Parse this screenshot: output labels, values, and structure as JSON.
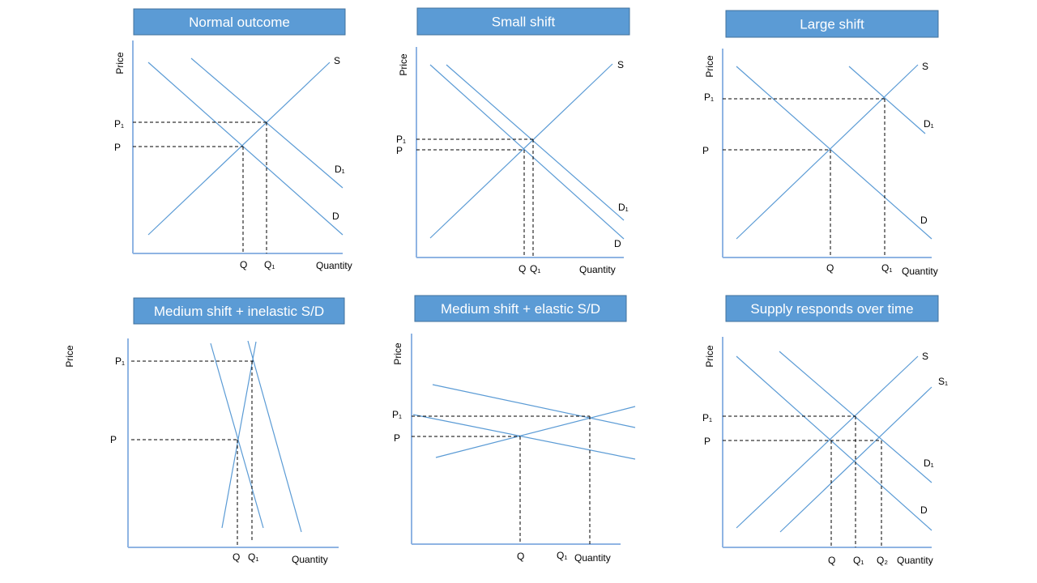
{
  "colors": {
    "title_fill": "#5b9bd5",
    "title_border": "#41719c",
    "curve": "#5b9bd5",
    "axis": "#8fb4e3",
    "guide": "#000000"
  },
  "panels": [
    {
      "title": "Normal outcome",
      "ylabel": "Price",
      "xlabel": "Quantity",
      "labels": [
        "P₁",
        "P",
        "Q",
        "Q₁",
        "S",
        "D₁",
        "D"
      ]
    },
    {
      "title": "Small shift",
      "ylabel": "Price",
      "xlabel": "Quantity",
      "labels": [
        "P₁",
        "P",
        "Q",
        "Q₁",
        "S",
        "D₁",
        "D"
      ]
    },
    {
      "title": "Large shift",
      "ylabel": "Price",
      "xlabel": "Quantity",
      "labels": [
        "P₁",
        "P",
        "Q",
        "Q₁",
        "S",
        "D₁",
        "D"
      ]
    },
    {
      "title": "Medium shift + inelastic S/D",
      "ylabel": "Price",
      "xlabel": "Quantity",
      "labels": [
        "P₁",
        "P",
        "Q",
        "Q₁"
      ]
    },
    {
      "title": "Medium shift + elastic S/D",
      "ylabel": "Price",
      "xlabel": "Quantity",
      "labels": [
        "P₁",
        "P",
        "Q",
        "Q₁"
      ]
    },
    {
      "title": "Supply responds over time",
      "ylabel": "Price",
      "xlabel": "Quantity",
      "labels": [
        "P₁",
        "P",
        "Q",
        "Q₁",
        "Q₂",
        "S",
        "S₁",
        "D₁",
        "D"
      ]
    }
  ]
}
